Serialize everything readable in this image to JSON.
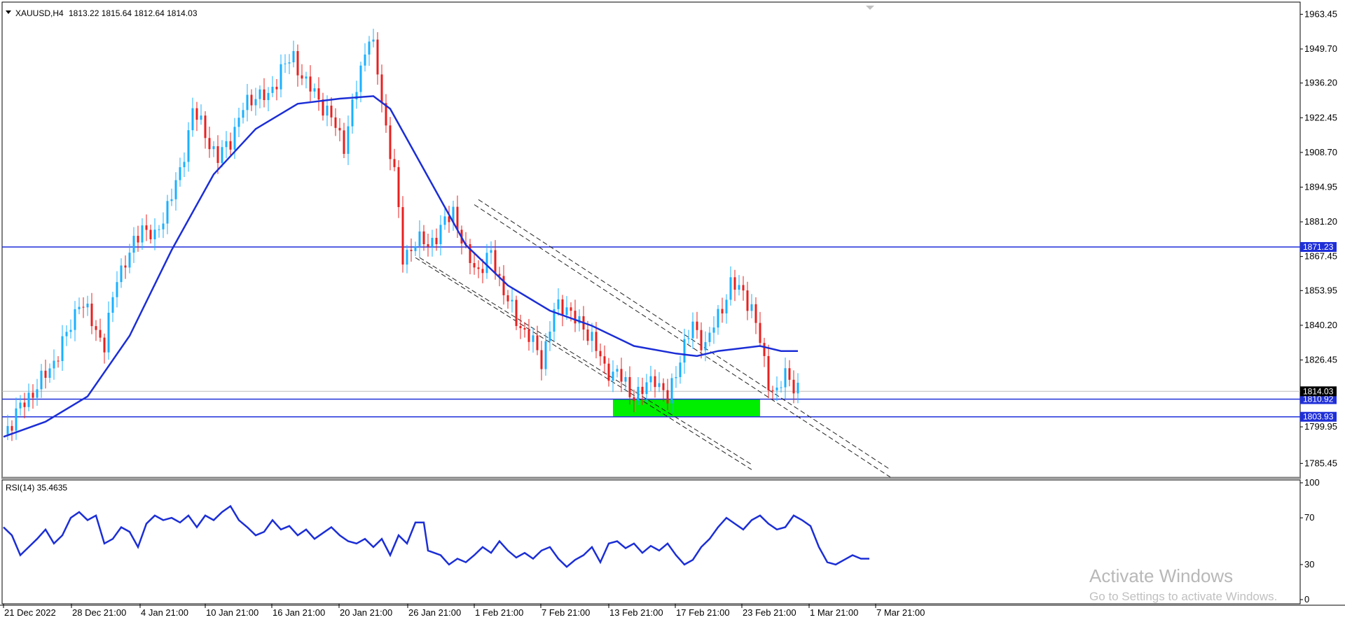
{
  "window": {
    "symbol_label": "XAUUSD,H4",
    "ohlc_label": "1813.22 1815.64 1812.64 1814.03"
  },
  "watermark": {
    "line1": "Activate Windows",
    "line2": "Go to Settings to activate Windows."
  },
  "colors": {
    "bull": "#1ab0ff",
    "bear": "#e8201f",
    "ma": "#1b2ed6",
    "hline": "#1f2fd8",
    "zone": "#00ee00",
    "rsi": "#1b2ed6"
  },
  "chart_data": [
    {
      "type": "candlestick",
      "title": "XAUUSD,H4",
      "ylim": [
        1780,
        1968
      ],
      "y_ticks": [
        "1963.45",
        "1949.70",
        "1936.20",
        "1922.45",
        "1908.70",
        "1894.95",
        "1881.20",
        "1867.45",
        "1853.95",
        "1840.20",
        "1826.45",
        "1799.95",
        "1785.45"
      ],
      "x_ticks": [
        "21 Dec 2022",
        "28 Dec 21:00",
        "4 Jan 21:00",
        "10 Jan 21:00",
        "16 Jan 21:00",
        "20 Jan 21:00",
        "26 Jan 21:00",
        "1 Feb 21:00",
        "7 Feb 21:00",
        "13 Feb 21:00",
        "17 Feb 21:00",
        "23 Feb 21:00",
        "1 Mar 21:00",
        "7 Mar 21:00"
      ],
      "last_price": "1814.03",
      "horizontal_lines": [
        "1871.23",
        "1810.92",
        "1803.93"
      ],
      "support_zone": [
        1803.93,
        1810.92
      ],
      "close_path": [
        [
          0,
          1797
        ],
        [
          3,
          1805
        ],
        [
          6,
          1812
        ],
        [
          9,
          1818
        ],
        [
          12,
          1826
        ],
        [
          15,
          1836
        ],
        [
          18,
          1850
        ],
        [
          21,
          1842
        ],
        [
          24,
          1832
        ],
        [
          27,
          1860
        ],
        [
          30,
          1868
        ],
        [
          33,
          1880
        ],
        [
          36,
          1874
        ],
        [
          39,
          1888
        ],
        [
          42,
          1900
        ],
        [
          45,
          1926
        ],
        [
          48,
          1916
        ],
        [
          51,
          1906
        ],
        [
          54,
          1914
        ],
        [
          57,
          1926
        ],
        [
          60,
          1932
        ],
        [
          63,
          1930
        ],
        [
          66,
          1942
        ],
        [
          69,
          1946
        ],
        [
          72,
          1936
        ],
        [
          75,
          1930
        ],
        [
          78,
          1922
        ],
        [
          81,
          1912
        ],
        [
          84,
          1934
        ],
        [
          87,
          1956
        ],
        [
          88,
          1950
        ],
        [
          91,
          1918
        ],
        [
          93,
          1902
        ],
        [
          95,
          1866
        ],
        [
          98,
          1874
        ],
        [
          101,
          1872
        ],
        [
          104,
          1878
        ],
        [
          107,
          1886
        ],
        [
          110,
          1868
        ],
        [
          113,
          1862
        ],
        [
          116,
          1868
        ],
        [
          119,
          1854
        ],
        [
          122,
          1842
        ],
        [
          125,
          1836
        ],
        [
          128,
          1826
        ],
        [
          131,
          1846
        ],
        [
          134,
          1848
        ],
        [
          137,
          1840
        ],
        [
          140,
          1836
        ],
        [
          143,
          1822
        ],
        [
          146,
          1822
        ],
        [
          149,
          1813
        ],
        [
          152,
          1814
        ],
        [
          155,
          1820
        ],
        [
          158,
          1810
        ],
        [
          161,
          1828
        ],
        [
          164,
          1840
        ],
        [
          167,
          1832
        ],
        [
          170,
          1844
        ],
        [
          173,
          1856
        ],
        [
          176,
          1854
        ],
        [
          178,
          1846
        ],
        [
          180,
          1834
        ],
        [
          182,
          1818
        ],
        [
          184,
          1812
        ],
        [
          186,
          1822
        ],
        [
          189,
          1814
        ]
      ],
      "series": [
        {
          "name": "",
          "type": "moving_average",
          "points": [
            [
              0,
              1796
            ],
            [
              10,
              1802
            ],
            [
              20,
              1812
            ],
            [
              30,
              1836
            ],
            [
              40,
              1870
            ],
            [
              50,
              1900
            ],
            [
              60,
              1918
            ],
            [
              70,
              1928
            ],
            [
              80,
              1930
            ],
            [
              88,
              1931
            ],
            [
              92,
              1926
            ],
            [
              100,
              1902
            ],
            [
              110,
              1872
            ],
            [
              120,
              1856
            ],
            [
              130,
              1846
            ],
            [
              140,
              1840
            ],
            [
              150,
              1832
            ],
            [
              160,
              1829
            ],
            [
              165,
              1828
            ],
            [
              170,
              1830
            ],
            [
              175,
              1831
            ],
            [
              180,
              1832
            ],
            [
              185,
              1830
            ],
            [
              189,
              1830
            ]
          ]
        }
      ],
      "channel_lines": [
        [
          [
            99,
            1867
          ],
          [
            178,
            1785
          ]
        ],
        [
          [
            98,
            1867
          ],
          [
            178,
            1783
          ]
        ],
        [
          [
            113,
            1890
          ],
          [
            211,
            1783
          ]
        ],
        [
          [
            112,
            1888
          ],
          [
            211,
            1780
          ]
        ]
      ]
    },
    {
      "type": "line",
      "title": "RSI(14) 35.4635",
      "ylim": [
        0,
        100
      ],
      "y_ticks": [
        "100",
        "70",
        "30",
        "0"
      ],
      "series": [
        {
          "name": "RSI(14)",
          "points": [
            [
              0,
              62
            ],
            [
              2,
              55
            ],
            [
              4,
              38
            ],
            [
              6,
              45
            ],
            [
              8,
              52
            ],
            [
              10,
              60
            ],
            [
              12,
              48
            ],
            [
              14,
              55
            ],
            [
              16,
              70
            ],
            [
              18,
              75
            ],
            [
              20,
              68
            ],
            [
              22,
              72
            ],
            [
              24,
              48
            ],
            [
              26,
              52
            ],
            [
              28,
              62
            ],
            [
              30,
              58
            ],
            [
              32,
              45
            ],
            [
              34,
              65
            ],
            [
              36,
              72
            ],
            [
              38,
              68
            ],
            [
              40,
              70
            ],
            [
              42,
              66
            ],
            [
              44,
              72
            ],
            [
              46,
              62
            ],
            [
              48,
              72
            ],
            [
              50,
              68
            ],
            [
              52,
              75
            ],
            [
              54,
              80
            ],
            [
              56,
              68
            ],
            [
              58,
              62
            ],
            [
              60,
              55
            ],
            [
              62,
              58
            ],
            [
              64,
              68
            ],
            [
              66,
              60
            ],
            [
              68,
              63
            ],
            [
              70,
              55
            ],
            [
              72,
              60
            ],
            [
              74,
              52
            ],
            [
              76,
              57
            ],
            [
              78,
              62
            ],
            [
              80,
              55
            ],
            [
              82,
              50
            ],
            [
              84,
              48
            ],
            [
              86,
              52
            ],
            [
              88,
              45
            ],
            [
              90,
              52
            ],
            [
              92,
              38
            ],
            [
              94,
              55
            ],
            [
              96,
              48
            ],
            [
              98,
              66
            ],
            [
              100,
              66
            ],
            [
              101,
              42
            ],
            [
              104,
              38
            ],
            [
              106,
              30
            ],
            [
              108,
              35
            ],
            [
              110,
              32
            ],
            [
              112,
              38
            ],
            [
              114,
              45
            ],
            [
              116,
              40
            ],
            [
              118,
              50
            ],
            [
              120,
              42
            ],
            [
              122,
              36
            ],
            [
              124,
              40
            ],
            [
              126,
              35
            ],
            [
              128,
              42
            ],
            [
              130,
              45
            ],
            [
              132,
              35
            ],
            [
              134,
              28
            ],
            [
              136,
              34
            ],
            [
              138,
              38
            ],
            [
              140,
              45
            ],
            [
              142,
              32
            ],
            [
              144,
              48
            ],
            [
              146,
              50
            ],
            [
              148,
              44
            ],
            [
              150,
              48
            ],
            [
              152,
              40
            ],
            [
              154,
              46
            ],
            [
              156,
              42
            ],
            [
              158,
              48
            ],
            [
              160,
              38
            ],
            [
              162,
              30
            ],
            [
              164,
              34
            ],
            [
              166,
              45
            ],
            [
              168,
              52
            ],
            [
              170,
              62
            ],
            [
              172,
              70
            ],
            [
              174,
              65
            ],
            [
              176,
              60
            ],
            [
              178,
              68
            ],
            [
              180,
              72
            ],
            [
              182,
              65
            ],
            [
              184,
              60
            ],
            [
              186,
              62
            ],
            [
              188,
              72
            ],
            [
              190,
              68
            ],
            [
              192,
              63
            ],
            [
              194,
              45
            ],
            [
              196,
              32
            ],
            [
              198,
              30
            ],
            [
              200,
              34
            ],
            [
              202,
              38
            ],
            [
              204,
              35
            ],
            [
              206,
              35
            ]
          ]
        }
      ]
    }
  ]
}
